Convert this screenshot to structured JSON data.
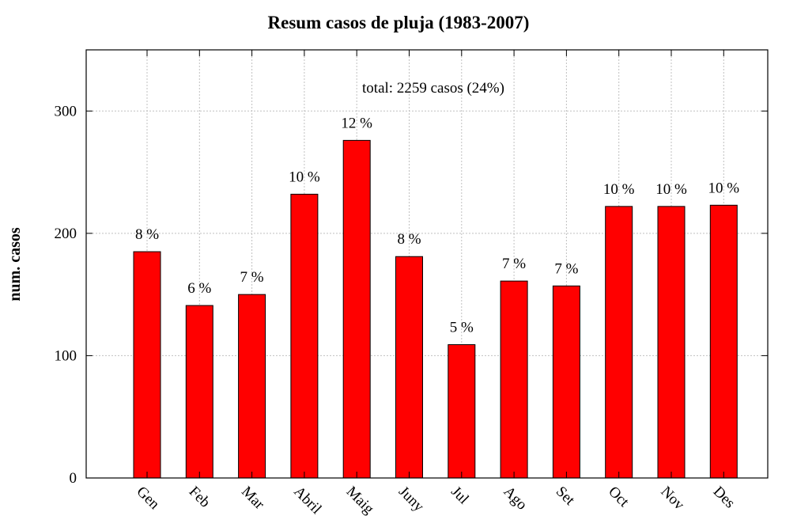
{
  "chart_data": {
    "type": "bar",
    "title": "Resum casos de pluja (1983-2007)",
    "xlabel": "",
    "ylabel": "num. casos",
    "annotation": "total: 2259 casos (24%)",
    "categories": [
      "Gen",
      "Feb",
      "Mar",
      "Abril",
      "Maig",
      "Juny",
      "Jul",
      "Ago",
      "Set",
      "Oct",
      "Nov",
      "Des"
    ],
    "values": [
      185,
      141,
      150,
      232,
      276,
      181,
      109,
      161,
      157,
      222,
      222,
      223
    ],
    "bar_labels": [
      "8 %",
      "6 %",
      "7 %",
      "10 %",
      "12 %",
      "8 %",
      "5 %",
      "7 %",
      "7 %",
      "10 %",
      "10 %",
      "10 %"
    ],
    "ylim": [
      0,
      350
    ],
    "yticks": [
      0,
      100,
      200,
      300
    ],
    "grid": true,
    "bar_color": "#ff0000",
    "legend": "none"
  }
}
